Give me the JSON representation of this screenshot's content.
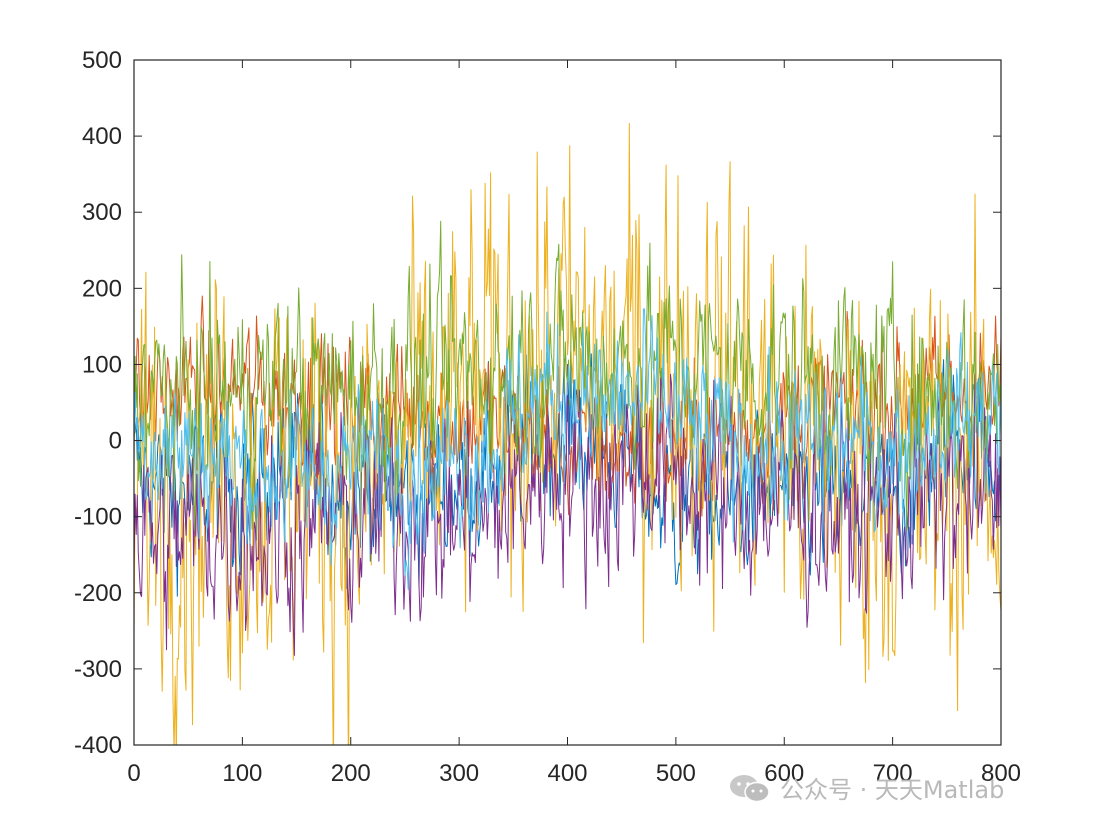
{
  "chart_data": {
    "type": "line",
    "title": "",
    "xlabel": "",
    "ylabel": "",
    "xlim": [
      0,
      800
    ],
    "ylim": [
      -400,
      500
    ],
    "xticks": [
      0,
      100,
      200,
      300,
      400,
      500,
      600,
      700,
      800
    ],
    "yticks": [
      -400,
      -300,
      -200,
      -100,
      0,
      100,
      200,
      300,
      400,
      500
    ],
    "grid": false,
    "legend": "none",
    "n_points": 801,
    "series": [
      {
        "color": "#0072BD",
        "sampled_x": [
          0,
          25,
          50,
          75,
          100,
          125,
          150,
          175,
          200,
          225,
          250,
          275,
          300,
          325,
          350,
          375,
          400,
          425,
          450,
          475,
          500,
          525,
          550,
          575,
          600,
          625,
          650,
          675,
          700,
          725,
          750,
          775,
          800
        ],
        "sampled_values": [
          -40,
          -60,
          -70,
          -60,
          -55,
          -45,
          -40,
          -50,
          -60,
          -55,
          -60,
          -70,
          -50,
          -40,
          -20,
          10,
          20,
          0,
          -20,
          -60,
          -90,
          -90,
          -80,
          -70,
          -60,
          -80,
          -90,
          -80,
          -80,
          -50,
          20,
          0,
          -30
        ]
      },
      {
        "color": "#D95319",
        "sampled_x": [
          0,
          25,
          50,
          75,
          100,
          125,
          150,
          175,
          200,
          225,
          250,
          275,
          300,
          325,
          350,
          375,
          400,
          425,
          450,
          475,
          500,
          525,
          550,
          575,
          600,
          625,
          650,
          675,
          700,
          725,
          750,
          775,
          800
        ],
        "sampled_values": [
          60,
          60,
          70,
          65,
          70,
          60,
          60,
          55,
          50,
          45,
          40,
          40,
          30,
          25,
          20,
          5,
          -10,
          -20,
          -10,
          -20,
          -10,
          10,
          10,
          20,
          30,
          40,
          50,
          50,
          60,
          60,
          60,
          65,
          60
        ]
      },
      {
        "color": "#EDB120",
        "sampled_x": [
          0,
          25,
          50,
          75,
          100,
          125,
          150,
          175,
          200,
          225,
          250,
          275,
          300,
          325,
          350,
          375,
          400,
          425,
          450,
          475,
          500,
          525,
          550,
          575,
          600,
          625,
          650,
          675,
          700,
          725,
          750,
          775,
          800
        ],
        "sampled_values": [
          -50,
          -40,
          -60,
          -30,
          -40,
          -60,
          -30,
          -40,
          -70,
          -60,
          -20,
          0,
          30,
          60,
          80,
          100,
          110,
          90,
          80,
          90,
          100,
          90,
          80,
          60,
          0,
          -20,
          -30,
          -40,
          -60,
          -50,
          -40,
          -40,
          -60
        ]
      },
      {
        "color": "#7E2F8E",
        "sampled_x": [
          0,
          25,
          50,
          75,
          100,
          125,
          150,
          175,
          200,
          225,
          250,
          275,
          300,
          325,
          350,
          375,
          400,
          425,
          450,
          475,
          500,
          525,
          550,
          575,
          600,
          625,
          650,
          675,
          700,
          725,
          750,
          775,
          800
        ],
        "sampled_values": [
          -110,
          -130,
          -120,
          -110,
          -110,
          -120,
          -110,
          -100,
          -110,
          -100,
          -90,
          -100,
          -100,
          -100,
          -80,
          -40,
          -20,
          -60,
          -40,
          -20,
          -40,
          -60,
          -70,
          -80,
          -80,
          -90,
          -90,
          -100,
          -90,
          -80,
          -70,
          -70,
          -80
        ]
      },
      {
        "color": "#77AC30",
        "sampled_x": [
          0,
          25,
          50,
          75,
          100,
          125,
          150,
          175,
          200,
          225,
          250,
          275,
          300,
          325,
          350,
          375,
          400,
          425,
          450,
          475,
          500,
          525,
          550,
          575,
          600,
          625,
          650,
          675,
          700,
          725,
          750,
          775,
          800
        ],
        "sampled_values": [
          60,
          60,
          50,
          70,
          60,
          70,
          80,
          60,
          70,
          70,
          80,
          80,
          90,
          100,
          100,
          110,
          120,
          100,
          100,
          110,
          100,
          100,
          90,
          90,
          90,
          80,
          80,
          70,
          70,
          60,
          70,
          60,
          60
        ]
      },
      {
        "color": "#4DBEEE",
        "sampled_x": [
          0,
          25,
          50,
          75,
          100,
          125,
          150,
          175,
          200,
          225,
          250,
          275,
          300,
          325,
          350,
          375,
          400,
          425,
          450,
          475,
          500,
          525,
          550,
          575,
          600,
          625,
          650,
          675,
          700,
          725,
          750,
          775,
          800
        ],
        "sampled_values": [
          10,
          0,
          -10,
          -20,
          -30,
          -40,
          -50,
          -40,
          -30,
          -20,
          -40,
          -30,
          -20,
          -10,
          30,
          60,
          70,
          40,
          50,
          60,
          30,
          10,
          0,
          -10,
          -10,
          0,
          0,
          -10,
          -20,
          0,
          40,
          30,
          40
        ]
      }
    ]
  },
  "watermark": {
    "text": "公众号 · 天天Matlab",
    "icon": "wechat-icon"
  }
}
